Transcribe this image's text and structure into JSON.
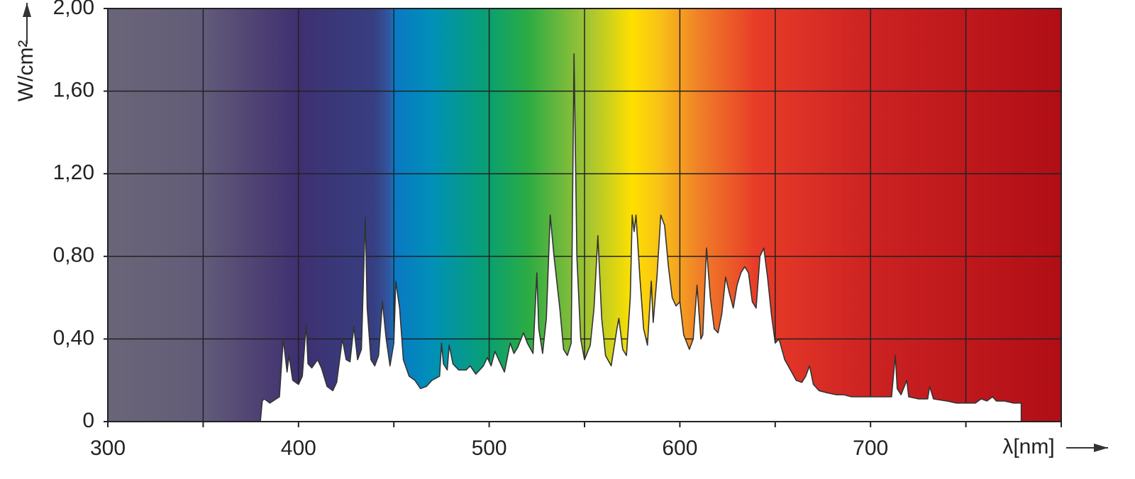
{
  "chart_data": {
    "type": "area",
    "y_label": "W/cm²",
    "x_label": "λ[nm]",
    "xlim": [
      300,
      800
    ],
    "ylim": [
      0,
      2
    ],
    "xticks": [
      300,
      400,
      500,
      600,
      700
    ],
    "xgrid": [
      350,
      450,
      550,
      650,
      750,
      800
    ],
    "yticks": [
      0,
      {
        "value": 0.4,
        "label": "0,40"
      },
      {
        "value": 0.8,
        "label": "0,80"
      },
      {
        "value": 1.2,
        "label": "1,20"
      },
      {
        "value": 1.6,
        "label": "1,60"
      },
      {
        "value": 2,
        "label": "2,00"
      }
    ],
    "grid": true,
    "color": "#ffffff",
    "line_color": "#333333",
    "x": [
      380,
      381,
      382,
      385,
      390,
      392,
      394,
      395,
      397,
      400,
      402,
      404,
      405,
      407,
      410,
      412,
      415,
      418,
      420,
      423,
      425,
      427,
      429,
      431,
      433,
      435,
      436,
      438,
      440,
      442,
      444,
      446,
      448,
      450,
      451,
      453,
      455,
      458,
      461,
      464,
      467,
      470,
      474,
      475,
      476,
      478,
      479,
      481,
      484,
      488,
      490,
      493,
      497,
      499,
      501,
      503,
      505,
      508,
      511,
      513,
      515,
      518,
      520,
      523,
      525,
      526,
      528,
      530,
      532,
      534,
      537,
      539,
      541,
      543,
      544.5,
      546,
      548,
      550,
      553,
      555,
      557,
      559,
      561,
      564,
      567,
      568,
      570,
      572,
      574,
      575,
      576,
      577,
      579,
      581,
      583,
      585,
      586,
      588,
      590,
      592,
      594,
      596,
      598,
      600,
      602,
      605,
      607,
      609,
      611,
      612,
      614,
      616,
      618,
      620,
      622,
      624,
      626,
      628,
      630,
      632,
      634,
      636,
      638,
      640,
      642,
      644,
      646,
      648,
      650,
      652,
      655,
      658,
      661,
      664,
      666,
      668,
      670,
      673,
      677,
      682,
      686,
      690,
      695,
      700,
      705,
      711,
      713,
      714,
      716,
      719,
      720,
      725,
      730,
      731,
      733,
      740,
      745,
      750,
      755,
      758,
      761,
      764,
      766,
      770,
      775,
      779,
      779
    ],
    "values": [
      0,
      0.1,
      0.11,
      0.09,
      0.12,
      0.4,
      0.24,
      0.32,
      0.2,
      0.18,
      0.22,
      0.47,
      0.28,
      0.26,
      0.3,
      0.26,
      0.17,
      0.15,
      0.19,
      0.4,
      0.3,
      0.29,
      0.46,
      0.3,
      0.35,
      0.99,
      0.55,
      0.3,
      0.27,
      0.32,
      0.58,
      0.4,
      0.27,
      0.38,
      0.68,
      0.55,
      0.3,
      0.22,
      0.2,
      0.16,
      0.17,
      0.2,
      0.22,
      0.38,
      0.28,
      0.25,
      0.37,
      0.28,
      0.25,
      0.25,
      0.27,
      0.23,
      0.27,
      0.31,
      0.27,
      0.34,
      0.3,
      0.24,
      0.38,
      0.33,
      0.36,
      0.43,
      0.38,
      0.33,
      0.72,
      0.45,
      0.33,
      0.5,
      1.0,
      0.8,
      0.55,
      0.35,
      0.32,
      0.38,
      1.78,
      0.8,
      0.4,
      0.3,
      0.37,
      0.55,
      0.9,
      0.5,
      0.32,
      0.27,
      0.45,
      0.5,
      0.35,
      0.32,
      0.6,
      1.0,
      0.92,
      1.0,
      0.7,
      0.45,
      0.37,
      0.68,
      0.48,
      0.7,
      1.0,
      0.95,
      0.75,
      0.6,
      0.56,
      0.58,
      0.42,
      0.35,
      0.4,
      0.66,
      0.4,
      0.42,
      0.84,
      0.6,
      0.45,
      0.43,
      0.52,
      0.7,
      0.62,
      0.55,
      0.66,
      0.72,
      0.75,
      0.72,
      0.58,
      0.55,
      0.8,
      0.84,
      0.7,
      0.52,
      0.38,
      0.4,
      0.3,
      0.25,
      0.2,
      0.19,
      0.22,
      0.27,
      0.18,
      0.15,
      0.14,
      0.13,
      0.13,
      0.12,
      0.12,
      0.12,
      0.12,
      0.12,
      0.32,
      0.16,
      0.13,
      0.2,
      0.12,
      0.11,
      0.11,
      0.17,
      0.11,
      0.1,
      0.09,
      0.09,
      0.09,
      0.11,
      0.1,
      0.12,
      0.1,
      0.1,
      0.09,
      0.09,
      0
    ]
  }
}
